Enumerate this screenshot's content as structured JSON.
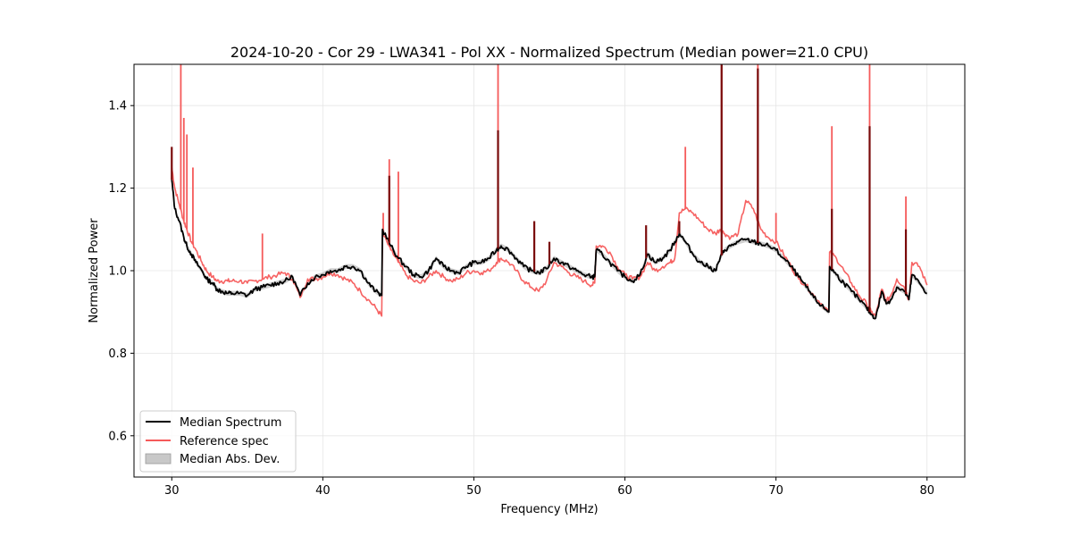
{
  "chart_data": {
    "type": "line",
    "title": "2024-10-20 - Cor 29 - LWA341 - Pol XX - Normalized Spectrum (Median power=21.0 CPU)",
    "xlabel": "Frequency (MHz)",
    "ylabel": "Normalized Power",
    "xlim": [
      27.5,
      82.5
    ],
    "ylim": [
      0.5,
      1.5
    ],
    "xticks": [
      30,
      40,
      50,
      60,
      70,
      80
    ],
    "yticks": [
      0.6,
      0.8,
      1.0,
      1.2,
      1.4
    ],
    "grid": true,
    "legend_position": "lower-left",
    "series": [
      {
        "name": "Median Spectrum",
        "color": "#000000",
        "x": [
          30.0,
          30.2,
          30.5,
          30.8,
          31.0,
          31.3,
          31.6,
          32.0,
          32.3,
          32.7,
          33.0,
          33.3,
          33.7,
          34.0,
          34.5,
          35.0,
          35.5,
          36.0,
          36.5,
          37.0,
          37.5,
          38.0,
          38.5,
          39.0,
          39.5,
          40.0,
          40.5,
          41.0,
          41.5,
          42.0,
          42.5,
          43.0,
          43.5,
          43.9,
          43.95,
          44.5,
          45.0,
          45.5,
          46.0,
          46.5,
          47.0,
          47.5,
          48.0,
          48.5,
          49.0,
          49.5,
          50.0,
          50.5,
          51.0,
          51.5,
          51.8,
          52.3,
          52.8,
          53.3,
          53.8,
          54.3,
          54.8,
          55.3,
          55.8,
          56.3,
          56.8,
          57.3,
          57.8,
          58.0,
          58.1,
          58.5,
          59.0,
          59.5,
          60.0,
          60.5,
          61.0,
          61.5,
          62.0,
          62.5,
          63.0,
          63.3,
          63.6,
          64.0,
          64.5,
          65.0,
          65.5,
          66.0,
          66.3,
          66.6,
          67.0,
          67.5,
          68.0,
          68.5,
          69.0,
          69.5,
          70.0,
          70.5,
          71.0,
          71.5,
          72.0,
          72.5,
          73.0,
          73.5,
          73.55,
          74.0,
          74.5,
          75.0,
          75.5,
          76.0,
          76.3,
          76.6,
          77.0,
          77.3,
          77.6,
          78.0,
          78.5,
          78.8,
          79.0,
          79.5,
          80.0
        ],
        "values": [
          1.22,
          1.15,
          1.12,
          1.08,
          1.06,
          1.04,
          1.02,
          1.0,
          0.98,
          0.97,
          0.955,
          0.95,
          0.945,
          0.945,
          0.945,
          0.94,
          0.955,
          0.96,
          0.965,
          0.97,
          0.975,
          0.985,
          0.94,
          0.97,
          0.985,
          0.99,
          1.0,
          1.0,
          1.01,
          1.01,
          1.0,
          0.97,
          0.95,
          0.94,
          1.1,
          1.06,
          1.03,
          1.01,
          0.99,
          0.985,
          1.0,
          1.03,
          1.01,
          1.0,
          0.995,
          1.01,
          1.02,
          1.02,
          1.03,
          1.05,
          1.06,
          1.05,
          1.03,
          1.01,
          1.0,
          0.995,
          1.005,
          1.03,
          1.02,
          1.01,
          1.0,
          0.99,
          0.985,
          0.985,
          1.05,
          1.04,
          1.02,
          1.0,
          0.985,
          0.975,
          0.99,
          1.04,
          1.02,
          1.03,
          1.05,
          1.07,
          1.09,
          1.07,
          1.04,
          1.02,
          1.01,
          1.0,
          1.03,
          1.05,
          1.06,
          1.07,
          1.075,
          1.07,
          1.065,
          1.06,
          1.05,
          1.03,
          1.01,
          0.985,
          0.96,
          0.935,
          0.915,
          0.9,
          1.01,
          0.99,
          0.97,
          0.95,
          0.93,
          0.91,
          0.895,
          0.885,
          0.95,
          0.92,
          0.93,
          0.96,
          0.95,
          0.93,
          0.99,
          0.97,
          0.945
        ]
      },
      {
        "name": "Reference spec",
        "color": "#f55a5a",
        "x": [
          30.0,
          30.2,
          30.5,
          30.8,
          31.0,
          31.3,
          31.6,
          32.0,
          32.3,
          32.7,
          33.0,
          33.3,
          33.7,
          34.0,
          34.5,
          35.0,
          35.5,
          36.0,
          36.5,
          37.0,
          37.5,
          38.0,
          38.5,
          39.0,
          39.5,
          40.0,
          40.5,
          41.0,
          41.5,
          42.0,
          42.5,
          43.0,
          43.5,
          43.9,
          43.95,
          44.5,
          45.0,
          45.5,
          46.0,
          46.5,
          47.0,
          47.5,
          48.0,
          48.5,
          49.0,
          49.5,
          50.0,
          50.5,
          51.0,
          51.5,
          51.8,
          52.3,
          52.8,
          53.3,
          53.8,
          54.3,
          54.8,
          55.3,
          55.8,
          56.3,
          56.8,
          57.3,
          57.8,
          58.0,
          58.1,
          58.5,
          59.0,
          59.5,
          60.0,
          60.5,
          61.0,
          61.5,
          62.0,
          62.5,
          63.0,
          63.3,
          63.6,
          64.0,
          64.5,
          65.0,
          65.5,
          66.0,
          66.3,
          66.6,
          67.0,
          67.5,
          68.0,
          68.5,
          69.0,
          69.5,
          70.0,
          70.5,
          71.0,
          71.5,
          72.0,
          72.5,
          73.0,
          73.5,
          73.55,
          74.0,
          74.5,
          75.0,
          75.5,
          76.0,
          76.3,
          76.6,
          77.0,
          77.3,
          77.6,
          78.0,
          78.5,
          78.8,
          79.0,
          79.5,
          80.0
        ],
        "values": [
          1.25,
          1.2,
          1.16,
          1.12,
          1.1,
          1.07,
          1.05,
          1.02,
          1.0,
          0.985,
          0.975,
          0.975,
          0.975,
          0.975,
          0.975,
          0.97,
          0.975,
          0.98,
          0.985,
          0.99,
          0.995,
          0.98,
          0.935,
          0.98,
          0.98,
          0.985,
          0.995,
          0.99,
          0.98,
          0.97,
          0.95,
          0.93,
          0.91,
          0.89,
          1.09,
          1.05,
          1.02,
          0.99,
          0.975,
          0.97,
          0.985,
          1.0,
          0.985,
          0.975,
          0.98,
          0.995,
          1.0,
          0.995,
          1.0,
          1.02,
          1.03,
          1.02,
          1.0,
          0.975,
          0.96,
          0.95,
          0.975,
          1.02,
          1.01,
          0.995,
          0.985,
          0.975,
          0.965,
          0.97,
          1.06,
          1.06,
          1.045,
          1.01,
          0.99,
          0.98,
          0.985,
          1.02,
          1.0,
          1.01,
          1.02,
          1.03,
          1.14,
          1.15,
          1.14,
          1.12,
          1.1,
          1.09,
          1.1,
          1.09,
          1.08,
          1.09,
          1.17,
          1.15,
          1.1,
          1.08,
          1.07,
          1.04,
          1.01,
          0.98,
          0.965,
          0.94,
          0.92,
          0.9,
          1.045,
          1.03,
          1.0,
          0.97,
          0.94,
          0.92,
          0.9,
          0.89,
          0.955,
          0.925,
          0.94,
          0.98,
          0.96,
          0.93,
          1.02,
          1.01,
          0.965
        ]
      }
    ],
    "mad_band": {
      "name": "Median Abs. Dev.",
      "color": "#b0b0b0",
      "half_width": 0.006
    },
    "spikes": [
      {
        "series": "Reference spec",
        "x": 30.6,
        "y": 1.5
      },
      {
        "series": "Reference spec",
        "x": 30.8,
        "y": 1.37
      },
      {
        "series": "Reference spec",
        "x": 31.0,
        "y": 1.33
      },
      {
        "series": "Reference spec",
        "x": 31.4,
        "y": 1.25
      },
      {
        "series": "Reference spec",
        "x": 36.0,
        "y": 1.09
      },
      {
        "series": "Reference spec",
        "x": 44.0,
        "y": 1.14
      },
      {
        "series": "Reference spec",
        "x": 44.4,
        "y": 1.27
      },
      {
        "series": "Reference spec",
        "x": 45.0,
        "y": 1.24
      },
      {
        "series": "Reference spec",
        "x": 51.6,
        "y": 1.5
      },
      {
        "series": "Reference spec",
        "x": 64.0,
        "y": 1.3
      },
      {
        "series": "Reference spec",
        "x": 66.4,
        "y": 1.5
      },
      {
        "series": "Reference spec",
        "x": 68.8,
        "y": 1.5
      },
      {
        "series": "Reference spec",
        "x": 70.0,
        "y": 1.14
      },
      {
        "series": "Reference spec",
        "x": 73.7,
        "y": 1.35
      },
      {
        "series": "Reference spec",
        "x": 76.2,
        "y": 1.5
      },
      {
        "series": "Reference spec",
        "x": 78.6,
        "y": 1.18
      },
      {
        "series": "Median Spectrum",
        "x": 30.0,
        "y": 1.3
      },
      {
        "series": "Median Spectrum",
        "x": 44.4,
        "y": 1.23
      },
      {
        "series": "Median Spectrum",
        "x": 51.6,
        "y": 1.34
      },
      {
        "series": "Median Spectrum",
        "x": 54.0,
        "y": 1.12
      },
      {
        "series": "Median Spectrum",
        "x": 55.0,
        "y": 1.07
      },
      {
        "series": "Median Spectrum",
        "x": 61.4,
        "y": 1.11
      },
      {
        "series": "Median Spectrum",
        "x": 63.6,
        "y": 1.12
      },
      {
        "series": "Median Spectrum",
        "x": 66.4,
        "y": 1.5
      },
      {
        "series": "Median Spectrum",
        "x": 68.8,
        "y": 1.49
      },
      {
        "series": "Median Spectrum",
        "x": 73.7,
        "y": 1.15
      },
      {
        "series": "Median Spectrum",
        "x": 76.2,
        "y": 1.35
      },
      {
        "series": "Median Spectrum",
        "x": 78.6,
        "y": 1.1
      }
    ],
    "legend": [
      "Median Spectrum",
      "Reference spec",
      "Median Abs. Dev."
    ]
  }
}
